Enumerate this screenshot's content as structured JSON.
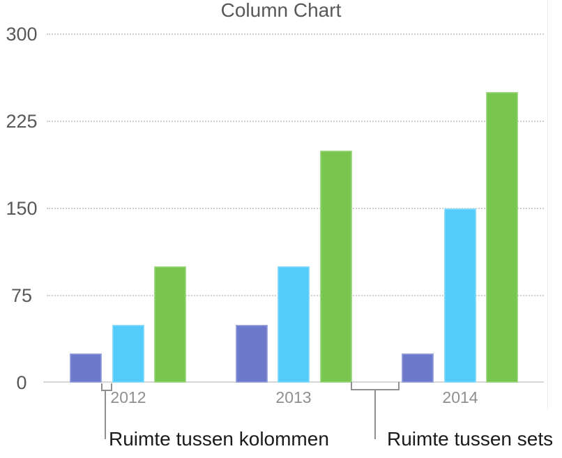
{
  "chart_data": {
    "type": "bar",
    "title": "Column Chart",
    "categories": [
      "2012",
      "2013",
      "2014"
    ],
    "series": [
      {
        "name": "purple",
        "color": "#6D7ACC",
        "values": [
          25,
          50,
          25
        ]
      },
      {
        "name": "blue",
        "color": "#54CCFA",
        "values": [
          50,
          100,
          150
        ]
      },
      {
        "name": "green",
        "color": "#78C64F",
        "values": [
          100,
          200,
          250
        ]
      }
    ],
    "ylim": [
      0,
      300
    ],
    "yticks": [
      0,
      75,
      150,
      225,
      300
    ],
    "grid": "horizontal dotted",
    "legend": "none"
  },
  "annotations": [
    {
      "label": "Ruimte tussen kolommen"
    },
    {
      "label": "Ruimte tussen sets"
    }
  ],
  "colors": {
    "title_text": "#58585A",
    "y_tick_text": "#58585A",
    "x_tick_text": "#8E8E93",
    "gridline": "#CDCDCD",
    "axis_line": "#D6D6D6",
    "bracket": "#8E8E93",
    "annotation_text": "#1B1B1D"
  }
}
